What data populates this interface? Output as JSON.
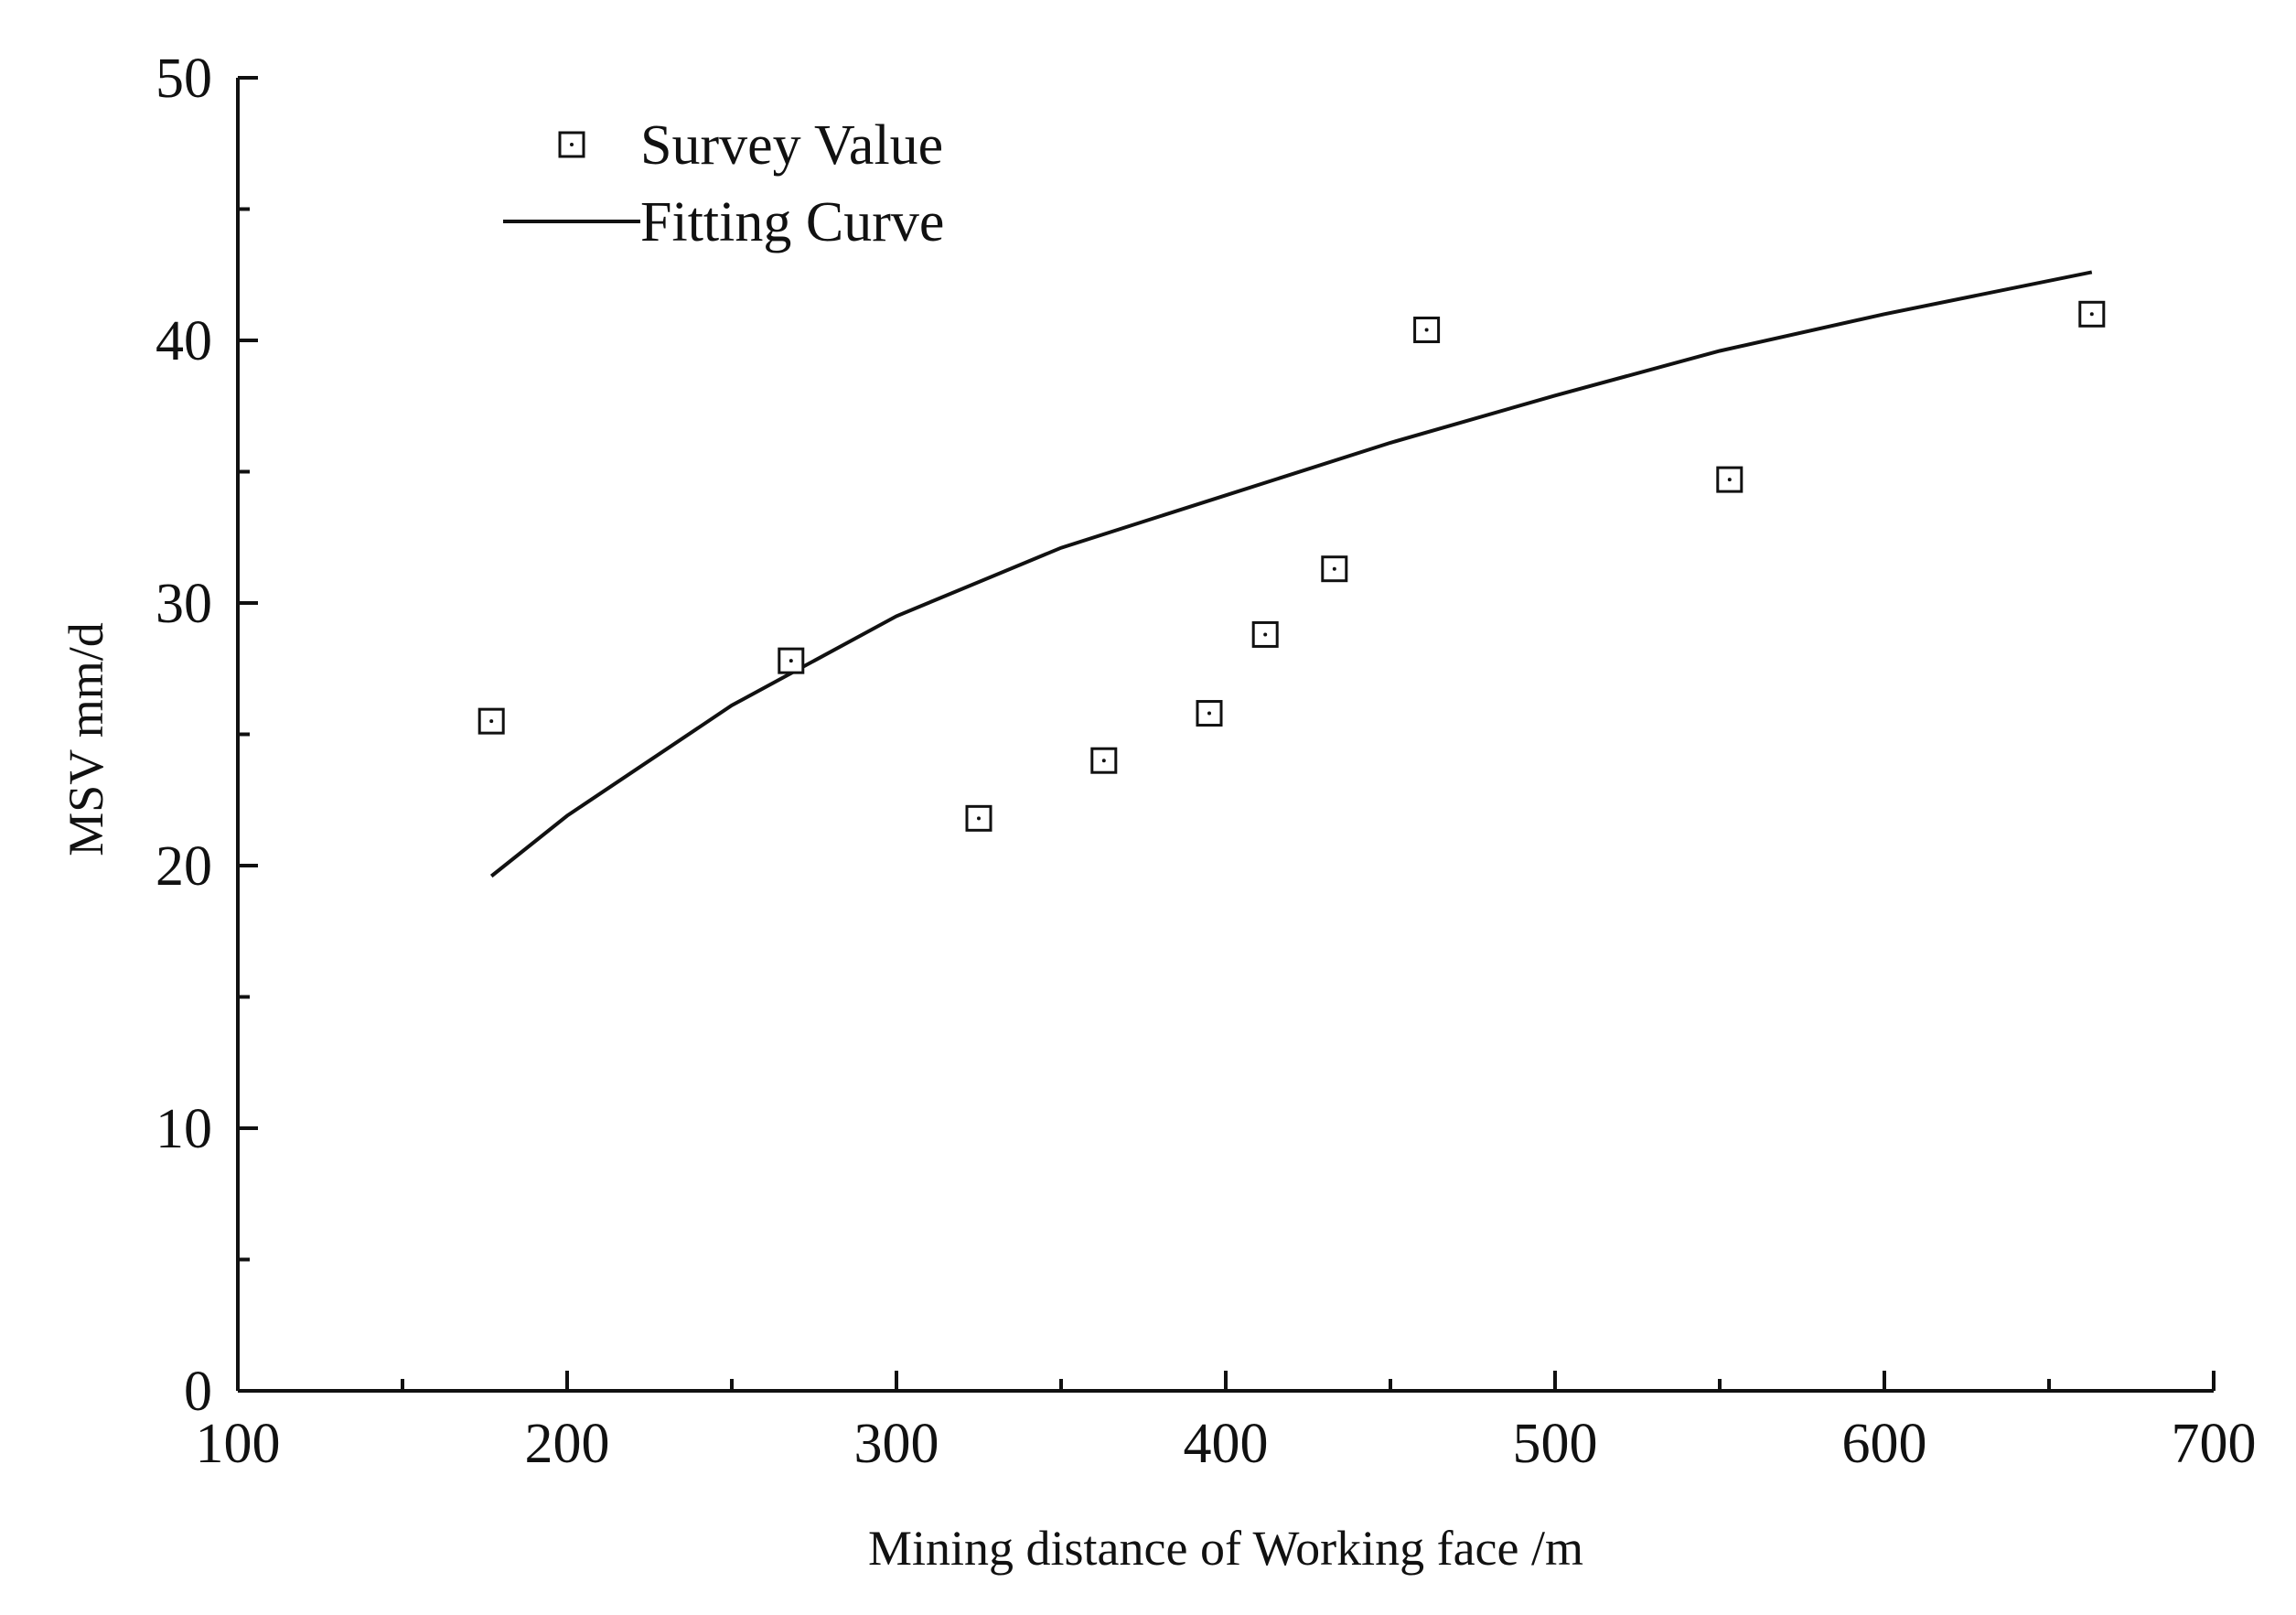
{
  "chart_data": {
    "type": "scatter",
    "xlabel": "Mining distance of Working face /m",
    "ylabel": "MSV mm/d",
    "xlim": [
      100,
      700
    ],
    "ylim": [
      0,
      50
    ],
    "x_ticks": [
      100,
      200,
      300,
      400,
      500,
      600,
      700
    ],
    "y_ticks": [
      0,
      10,
      20,
      30,
      40,
      50
    ],
    "x_minor_step": 50,
    "y_minor_step": 5,
    "grid": false,
    "legend_position": "top-left",
    "series": [
      {
        "name": "Survey Value",
        "type": "scatter",
        "marker": "open-square",
        "color": "#111111",
        "x": [
          177,
          268,
          325,
          363,
          395,
          412,
          433,
          461,
          553,
          663
        ],
        "y": [
          25.5,
          27.8,
          21.8,
          24.0,
          25.8,
          28.8,
          31.3,
          40.4,
          34.7,
          41.0
        ]
      },
      {
        "name": "Fitting Curve",
        "type": "line",
        "color": "#111111",
        "x": [
          177,
          200,
          250,
          300,
          350,
          400,
          450,
          500,
          550,
          600,
          663
        ],
        "y": [
          19.6,
          21.9,
          26.1,
          29.5,
          32.1,
          34.1,
          36.1,
          37.9,
          39.6,
          41.0,
          42.6
        ]
      }
    ]
  }
}
